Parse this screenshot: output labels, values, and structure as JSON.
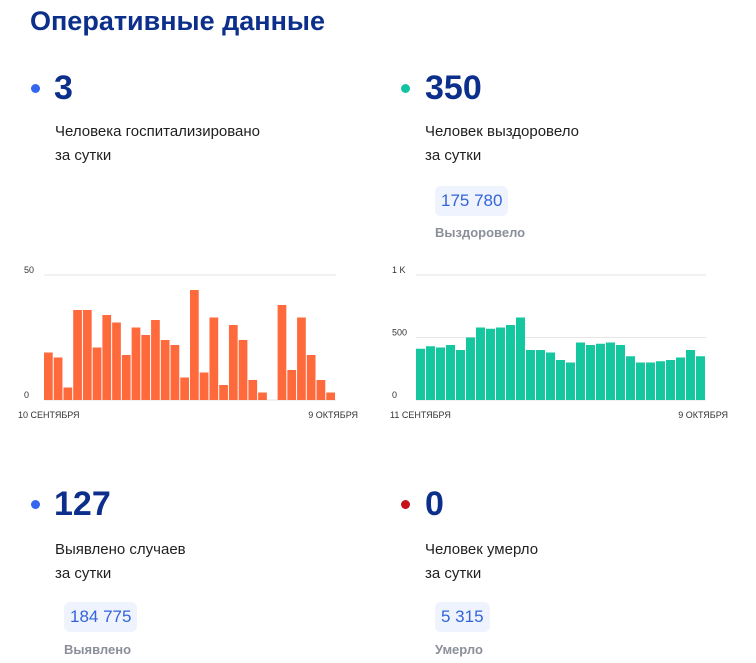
{
  "page_title": "Оперативные данные",
  "colors": {
    "blue_dot": "#3566f0",
    "teal_dot": "#12c3a1",
    "red_dot": "#c7111b",
    "orange_bars": "#ff6a3d",
    "teal_bars": "#14c79e",
    "number": "#0b2f8a"
  },
  "stats": {
    "hospitalized": {
      "value": "3",
      "line1": "Человека госпитализировано",
      "line2": "за сутки"
    },
    "recovered": {
      "value": "350",
      "line1": "Человек выздоровело",
      "line2": "за сутки",
      "total": "175 780",
      "total_label": "Выздоровело"
    },
    "cases": {
      "value": "127",
      "line1": "Выявлено случаев",
      "line2": "за сутки",
      "total": "184 775",
      "total_label": "Выявлено"
    },
    "deaths": {
      "value": "0",
      "line1": "Человек умерло",
      "line2": "за сутки",
      "total": "5 315",
      "total_label": "Умерло"
    }
  },
  "chart_data": [
    {
      "type": "bar",
      "series": [
        {
          "values": [
            19,
            17,
            5,
            36,
            36,
            21,
            34,
            31,
            18,
            29,
            26,
            32,
            24,
            22,
            9,
            44,
            11,
            33,
            6,
            30,
            24,
            8,
            3,
            0,
            38,
            12,
            33,
            18,
            8,
            3
          ]
        }
      ],
      "yticks": [
        "50",
        "0"
      ],
      "ylim": [
        0,
        50
      ],
      "x_start_label": "10 СЕНТЯБРЯ",
      "x_end_label": "9 ОКТЯБРЯ",
      "grid": true
    },
    {
      "type": "bar",
      "series": [
        {
          "values": [
            410,
            430,
            420,
            440,
            400,
            500,
            580,
            570,
            580,
            600,
            660,
            400,
            400,
            380,
            320,
            300,
            460,
            440,
            450,
            460,
            440,
            350,
            300,
            300,
            310,
            320,
            340,
            400,
            350
          ]
        }
      ],
      "yticks": [
        "1 K",
        "500",
        "0"
      ],
      "ylim": [
        0,
        1000
      ],
      "x_start_label": "11 СЕНТЯБРЯ",
      "x_end_label": "9 ОКТЯБРЯ",
      "grid": true
    }
  ]
}
